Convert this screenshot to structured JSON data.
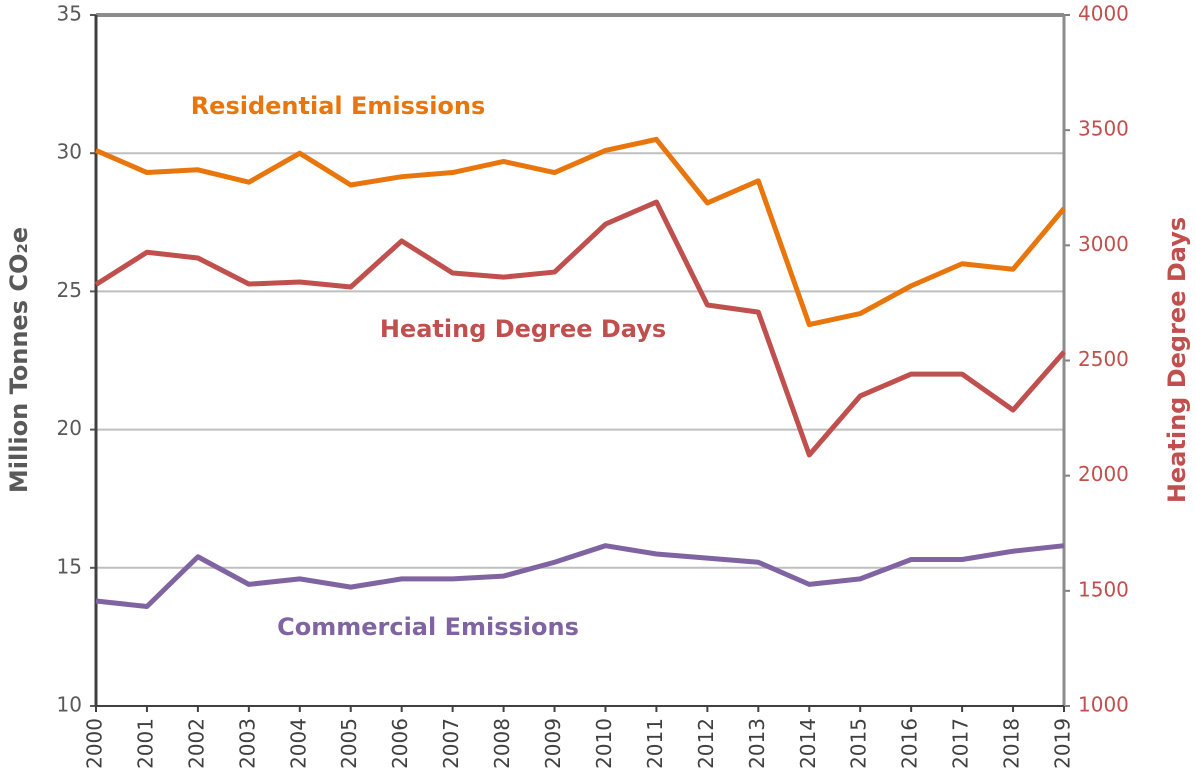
{
  "chart_data": {
    "type": "line",
    "categories": [
      "2000",
      "2001",
      "2002",
      "2003",
      "2004",
      "2005",
      "2006",
      "2007",
      "2008",
      "2009",
      "2010",
      "2011",
      "2012",
      "2013",
      "2014",
      "2015",
      "2016",
      "2017",
      "2018",
      "2019"
    ],
    "ylabel": "Million Tonnes CO₂e",
    "y2label": "Heating Degree Days",
    "ylim": [
      10,
      35
    ],
    "yticks": [
      10,
      15,
      20,
      25,
      30,
      35
    ],
    "y2lim": [
      1000,
      4000
    ],
    "y2ticks": [
      1000,
      1500,
      2000,
      2500,
      3000,
      3500,
      4000
    ],
    "grid": true,
    "series": [
      {
        "name": "Residential Emissions",
        "color": "#e8760c",
        "values": [
          30.1,
          29.3,
          29.4,
          28.95,
          30.0,
          28.85,
          29.15,
          29.3,
          29.7,
          29.3,
          30.1,
          30.5,
          28.2,
          29.0,
          23.8,
          24.2,
          25.2,
          26.0,
          25.8,
          28.0
        ]
      },
      {
        "name": "Heating Degree Days",
        "color": "#c0504d",
        "axis": "y2",
        "values": [
          2830,
          2970,
          2945,
          2832,
          2841,
          2819,
          3019,
          2880,
          2862,
          2884,
          3092,
          3188,
          2741,
          2710,
          2090,
          2346,
          2441,
          2441,
          2285,
          2537
        ]
      },
      {
        "name": "Commercial Emissions",
        "color": "#8064a2",
        "values": [
          13.8,
          13.6,
          15.4,
          14.4,
          14.6,
          14.3,
          14.6,
          14.6,
          14.7,
          15.2,
          15.8,
          15.5,
          15.35,
          15.2,
          14.4,
          14.6,
          15.3,
          15.3,
          15.6,
          15.8
        ]
      }
    ]
  }
}
